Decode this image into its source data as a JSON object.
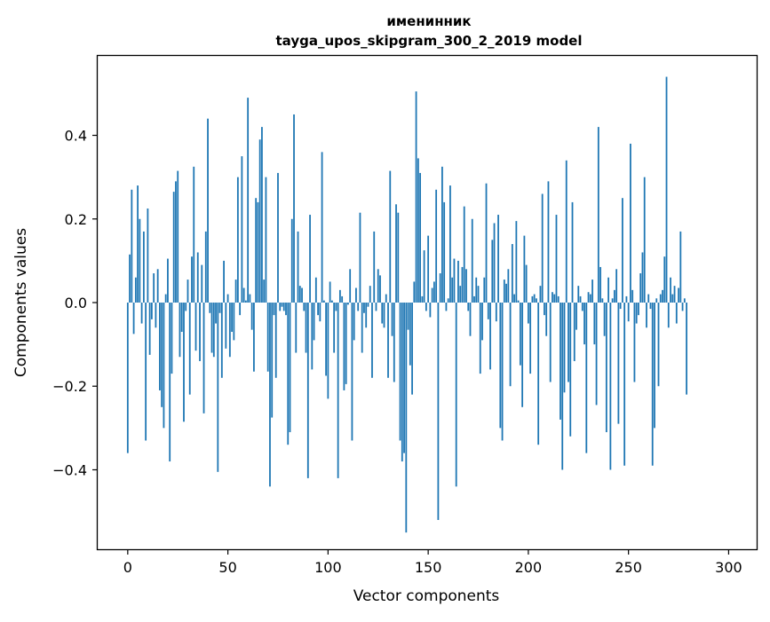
{
  "chart_data": {
    "type": "bar",
    "title": "именинник",
    "subtitle": "tayga_upos_skipgram_300_2_2019 model",
    "xlabel": "Vector components",
    "ylabel": "Components values",
    "xlim": [
      -15,
      314
    ],
    "ylim": [
      -0.59,
      0.59
    ],
    "xticks": [
      0,
      50,
      100,
      150,
      200,
      250,
      300
    ],
    "yticks": [
      -0.4,
      -0.2,
      0.0,
      0.2,
      0.4
    ],
    "ytick_labels": [
      "−0.4",
      "−0.2",
      "0.0",
      "0.2",
      "0.4"
    ],
    "grid": false,
    "color": "#1f77b4",
    "values": [
      -0.36,
      0.115,
      0.27,
      -0.075,
      0.06,
      0.28,
      0.2,
      -0.05,
      0.17,
      -0.33,
      0.225,
      -0.125,
      -0.04,
      0.07,
      -0.06,
      0.08,
      -0.21,
      -0.25,
      -0.3,
      0.02,
      0.105,
      -0.38,
      -0.17,
      0.265,
      0.29,
      0.315,
      -0.13,
      -0.07,
      -0.285,
      -0.02,
      0.055,
      -0.22,
      0.11,
      0.325,
      -0.115,
      0.12,
      -0.14,
      0.09,
      -0.265,
      0.17,
      0.44,
      -0.025,
      -0.12,
      -0.13,
      -0.05,
      -0.405,
      -0.025,
      -0.18,
      0.1,
      -0.11,
      0.02,
      -0.13,
      -0.07,
      -0.09,
      0.055,
      0.3,
      -0.03,
      0.35,
      0.035,
      0.005,
      0.49,
      0.02,
      -0.065,
      -0.165,
      0.25,
      0.24,
      0.39,
      0.42,
      0.055,
      0.3,
      -0.165,
      -0.44,
      -0.275,
      -0.03,
      -0.18,
      0.31,
      -0.02,
      -0.01,
      -0.02,
      -0.03,
      -0.34,
      -0.31,
      0.2,
      0.45,
      -0.12,
      0.17,
      0.04,
      0.035,
      -0.02,
      -0.12,
      -0.42,
      0.21,
      -0.16,
      -0.09,
      0.06,
      -0.03,
      -0.045,
      0.36,
      0.005,
      -0.175,
      -0.23,
      0.05,
      0.005,
      -0.12,
      -0.02,
      -0.42,
      0.03,
      0.015,
      -0.21,
      -0.195,
      -0.005,
      0.08,
      -0.33,
      -0.09,
      0.035,
      -0.02,
      0.215,
      -0.12,
      -0.025,
      -0.06,
      -0.01,
      0.04,
      -0.18,
      0.17,
      -0.02,
      0.08,
      0.065,
      -0.05,
      -0.06,
      0.02,
      -0.18,
      0.315,
      -0.08,
      -0.19,
      0.235,
      0.215,
      -0.33,
      -0.38,
      -0.36,
      -0.55,
      -0.065,
      -0.15,
      -0.22,
      0.05,
      0.505,
      0.345,
      0.31,
      0.015,
      0.125,
      -0.02,
      0.16,
      -0.035,
      0.035,
      0.05,
      0.27,
      -0.52,
      0.07,
      0.325,
      0.24,
      -0.02,
      0.01,
      0.28,
      0.06,
      0.105,
      -0.44,
      0.1,
      0.04,
      0.085,
      0.23,
      0.08,
      -0.02,
      -0.08,
      0.2,
      0.015,
      0.06,
      0.04,
      -0.17,
      -0.09,
      0.06,
      0.285,
      -0.04,
      -0.16,
      0.15,
      0.19,
      -0.045,
      0.21,
      -0.3,
      -0.33,
      0.055,
      0.045,
      0.08,
      -0.2,
      0.14,
      0.02,
      0.195,
      0.005,
      -0.15,
      -0.25,
      0.16,
      0.09,
      -0.05,
      -0.17,
      0.015,
      0.02,
      0.01,
      -0.34,
      0.04,
      0.26,
      -0.03,
      -0.08,
      0.29,
      -0.19,
      0.025,
      0.02,
      0.21,
      0.015,
      -0.28,
      -0.4,
      -0.215,
      0.34,
      -0.19,
      -0.32,
      0.24,
      -0.14,
      -0.065,
      0.04,
      0.015,
      -0.02,
      -0.1,
      -0.36,
      0.025,
      0.02,
      0.055,
      -0.1,
      -0.245,
      0.42,
      0.085,
      0.01,
      -0.08,
      -0.31,
      0.06,
      -0.4,
      0.01,
      0.03,
      0.08,
      -0.29,
      -0.015,
      0.25,
      -0.39,
      0.015,
      -0.045,
      0.38,
      0.03,
      -0.19,
      -0.05,
      -0.03,
      0.07,
      0.12,
      0.3,
      -0.06,
      0.02,
      -0.015,
      -0.39,
      -0.3,
      0.01,
      -0.2,
      0.02,
      0.03,
      0.11,
      0.54,
      -0.06,
      0.06,
      0.02,
      0.04,
      -0.05,
      0.035,
      0.17,
      -0.02,
      0.01,
      -0.22
    ]
  }
}
